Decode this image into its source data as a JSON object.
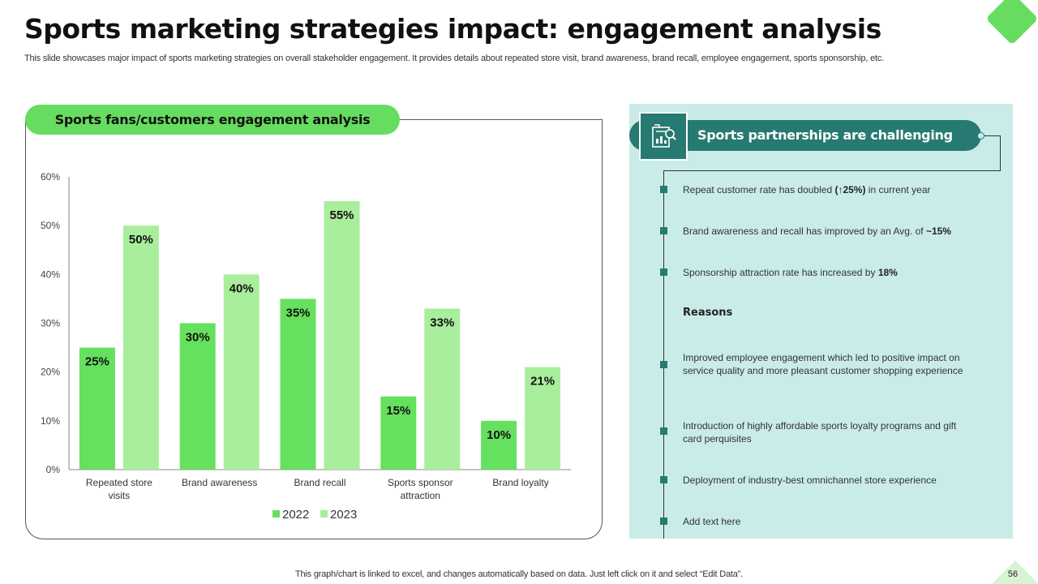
{
  "title": "Sports marketing strategies impact: engagement analysis",
  "subtitle": "This slide showcases major impact of sports marketing strategies on overall stakeholder engagement. It provides details about repeated store visit, brand awareness, brand recall, employee engagement, sports sponsorship, etc.",
  "chart_panel": {
    "header": "Sports fans/customers engagement analysis"
  },
  "chart_data": {
    "type": "bar",
    "title": "Sports fans/customers engagement analysis",
    "categories": [
      "Repeated store visits",
      "Brand awareness",
      "Brand recall",
      "Sports sponsor attraction",
      "Brand loyalty"
    ],
    "category_lines": [
      [
        "Repeated store",
        "visits"
      ],
      [
        "Brand awareness"
      ],
      [
        "Brand recall"
      ],
      [
        "Sports sponsor",
        "attraction"
      ],
      [
        "Brand loyalty"
      ]
    ],
    "series": [
      {
        "name": "2022",
        "values": [
          25,
          30,
          35,
          15,
          10
        ],
        "labels": [
          "25%",
          "30%",
          "35%",
          "15%",
          "10%"
        ],
        "color": "#66e05f"
      },
      {
        "name": "2023",
        "values": [
          50,
          40,
          55,
          33,
          21
        ],
        "labels": [
          "50%",
          "40%",
          "55%",
          "33%",
          "21%"
        ],
        "color": "#a9ee9c"
      }
    ],
    "ylim": [
      0,
      60
    ],
    "yticks": [
      0,
      10,
      20,
      30,
      40,
      50,
      60
    ],
    "ytick_labels": [
      "0%",
      "10%",
      "20%",
      "30%",
      "40%",
      "50%",
      "60%"
    ],
    "xlabel": "",
    "ylabel": "",
    "legend_position": "bottom",
    "grid": false
  },
  "right_panel": {
    "heading": "Sports partnerships are challenging",
    "icon": "analytics-report-icon",
    "items": [
      {
        "pre": "Repeat customer rate has doubled ",
        "bold": "(↑25%)",
        "post": " in current year"
      },
      {
        "pre": "Brand awareness and recall has improved  by an Avg. of ",
        "bold": "~15%",
        "post": ""
      },
      {
        "pre": "Sponsorship attraction rate has increased by ",
        "bold": "18%",
        "post": ""
      }
    ],
    "reasons_heading": "Reasons",
    "reasons": [
      "Improved  employee engagement which led to positive impact on service quality and more pleasant customer shopping experience",
      "Introduction of highly affordable  sports loyalty programs and gift card perquisites",
      "Deployment of industry-best omnichannel store experience",
      "Add text here"
    ]
  },
  "footer": "This graph/chart is linked to excel,  and changes automatically based on data. Just left click on it and select “Edit Data”.",
  "page_number": "56",
  "colors": {
    "accent_green": "#66dd60",
    "light_green": "#a9ee9c",
    "teal": "#267a72",
    "panel_bg": "#c9ece8"
  }
}
